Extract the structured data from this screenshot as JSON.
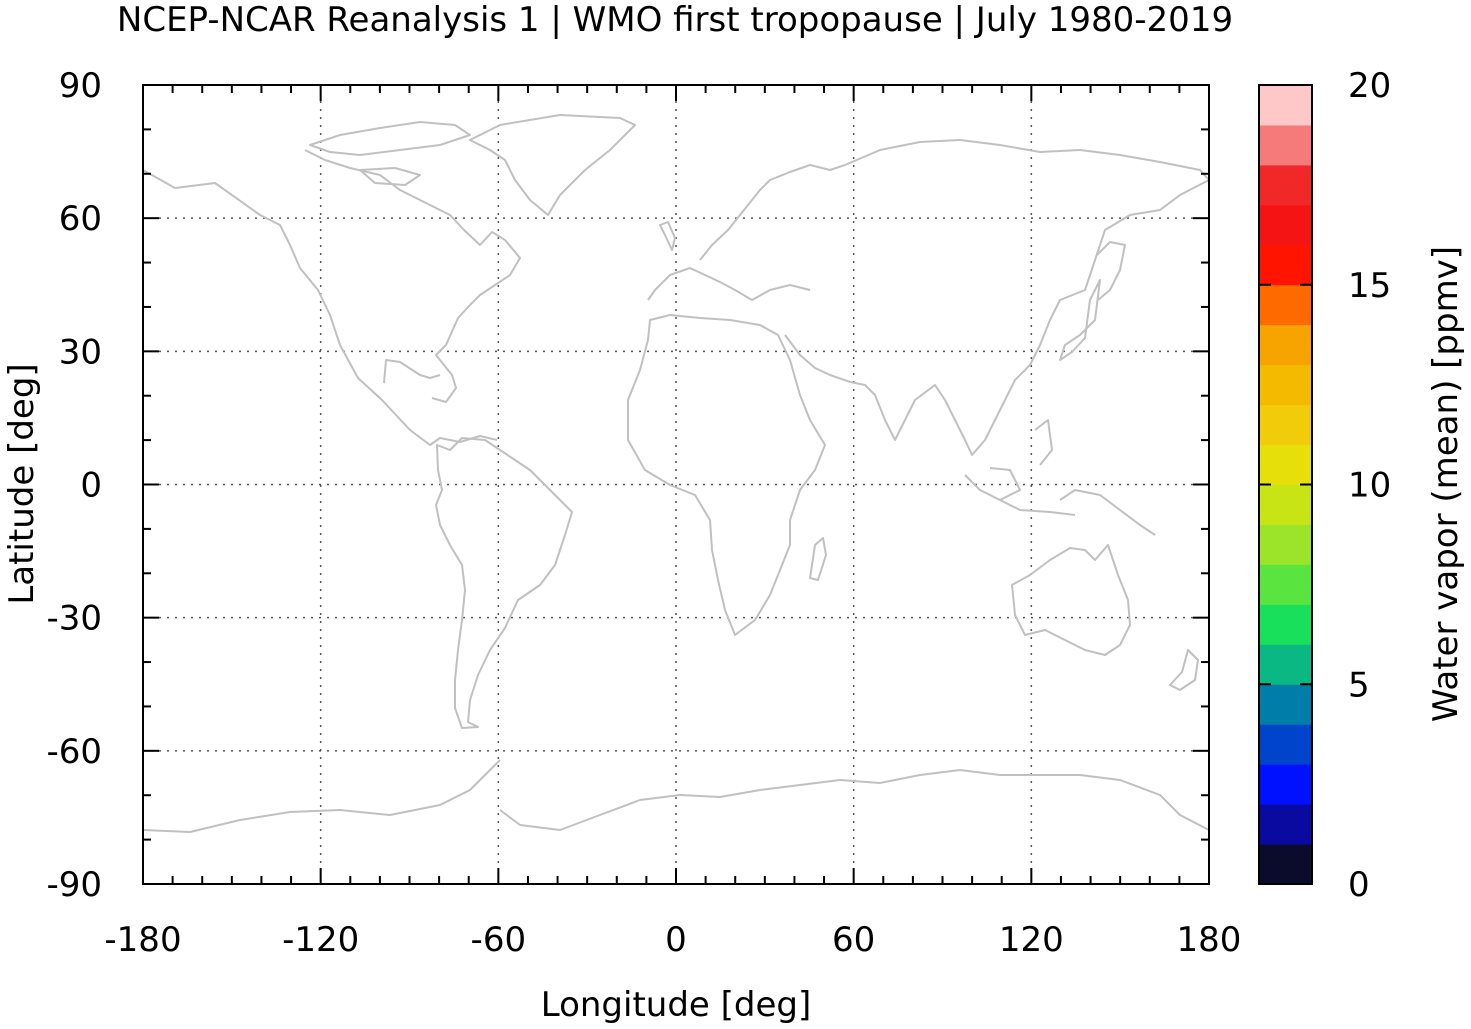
{
  "title": "NCEP-NCAR Reanalysis 1 | WMO first tropopause | July 1980-2019",
  "map": {
    "xlabel": "Longitude [deg]",
    "ylabel": "Latitude [deg]",
    "xlim": [
      -180,
      180
    ],
    "ylim": [
      -90,
      90
    ],
    "xticks": [
      "-180",
      "-120",
      "-60",
      "0",
      "60",
      "120",
      "180"
    ],
    "yticks": [
      "90",
      "60",
      "30",
      "0",
      "-30",
      "-60",
      "-90"
    ],
    "grid": "dotted",
    "coastline_color": "#c0c0c0",
    "field_values_shown": "none"
  },
  "colorbar": {
    "label": "Water vapor (mean) [ppmv]",
    "range": [
      0,
      20
    ],
    "ticks": [
      "0",
      "5",
      "10",
      "15",
      "20"
    ],
    "colors": [
      "#0b0b2c",
      "#0a0aa0",
      "#0011ff",
      "#0044cc",
      "#007da8",
      "#0ab884",
      "#18e05a",
      "#5ae440",
      "#9be42a",
      "#c9e415",
      "#e6df0a",
      "#f0cc0a",
      "#f3ba00",
      "#f7a400",
      "#ff6a00",
      "#ff1400",
      "#f51414",
      "#f02828",
      "#f57a7a",
      "#ffc8c8"
    ]
  }
}
